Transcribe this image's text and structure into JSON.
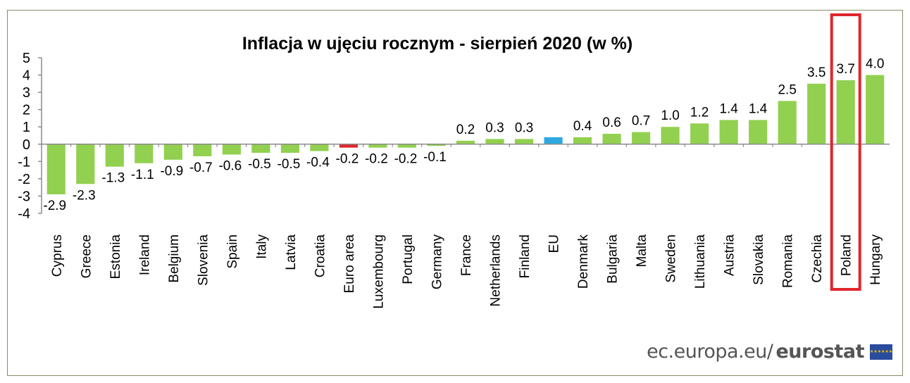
{
  "chart_data": {
    "type": "bar",
    "title": "Inflacja w ujęciu rocznym - sierpień 2020 (w %)",
    "xlabel": "",
    "ylabel": "",
    "ylim": [
      -4,
      5
    ],
    "yticks": [
      5,
      4,
      3,
      2,
      1,
      0,
      -1,
      -2,
      -3,
      -4
    ],
    "grid": false,
    "legend": "none",
    "categories": [
      "Cyprus",
      "Greece",
      "Estonia",
      "Ireland",
      "Belgium",
      "Slovenia",
      "Spain",
      "Italy",
      "Latvia",
      "Croatia",
      "Euro area",
      "Luxembourg",
      "Portugal",
      "Germany",
      "France",
      "Netherlands",
      "Finland",
      "EU",
      "Denmark",
      "Bulgaria",
      "Malta",
      "Sweden",
      "Lithuania",
      "Austria",
      "Slovakia",
      "Romania",
      "Czechia",
      "Poland",
      "Hungary"
    ],
    "values": [
      -2.9,
      -2.3,
      -1.3,
      -1.1,
      -0.9,
      -0.7,
      -0.6,
      -0.5,
      -0.5,
      -0.4,
      -0.2,
      -0.2,
      -0.2,
      -0.1,
      0.2,
      0.3,
      0.3,
      0.4,
      0.4,
      0.6,
      0.7,
      1.0,
      1.2,
      1.4,
      1.4,
      2.5,
      3.5,
      3.7,
      4.0
    ],
    "data_labels": [
      "-2.9",
      "-2.3",
      "-1.3",
      "-1.1",
      "-0.9",
      "-0.7",
      "-0.6",
      "-0.5",
      "-0.5",
      "-0.4",
      "-0.2",
      "-0.2",
      "-0.2",
      "-0.1",
      "0.2",
      "0.3",
      "0.3",
      "0.4",
      "0.4",
      "0.6",
      "0.7",
      "1.0",
      "1.2",
      "1.4",
      "1.4",
      "2.5",
      "3.5",
      "3.7",
      "4.0"
    ],
    "labeled_bars": [
      true,
      true,
      true,
      true,
      true,
      true,
      true,
      true,
      true,
      true,
      true,
      true,
      true,
      true,
      true,
      true,
      true,
      false,
      true,
      true,
      true,
      true,
      true,
      true,
      true,
      true,
      true,
      true,
      true
    ],
    "highlight": "Poland",
    "colors": {
      "default": "#92d050",
      "Euro area": "#e0262d",
      "EU": "#2ea8e0",
      "highlight_box": "#e0262d",
      "axis": "#8c8c8c"
    }
  },
  "footer": {
    "site": "ec.europa.eu/",
    "brand": "eurostat",
    "logo_icon": "eu-flag-icon"
  }
}
